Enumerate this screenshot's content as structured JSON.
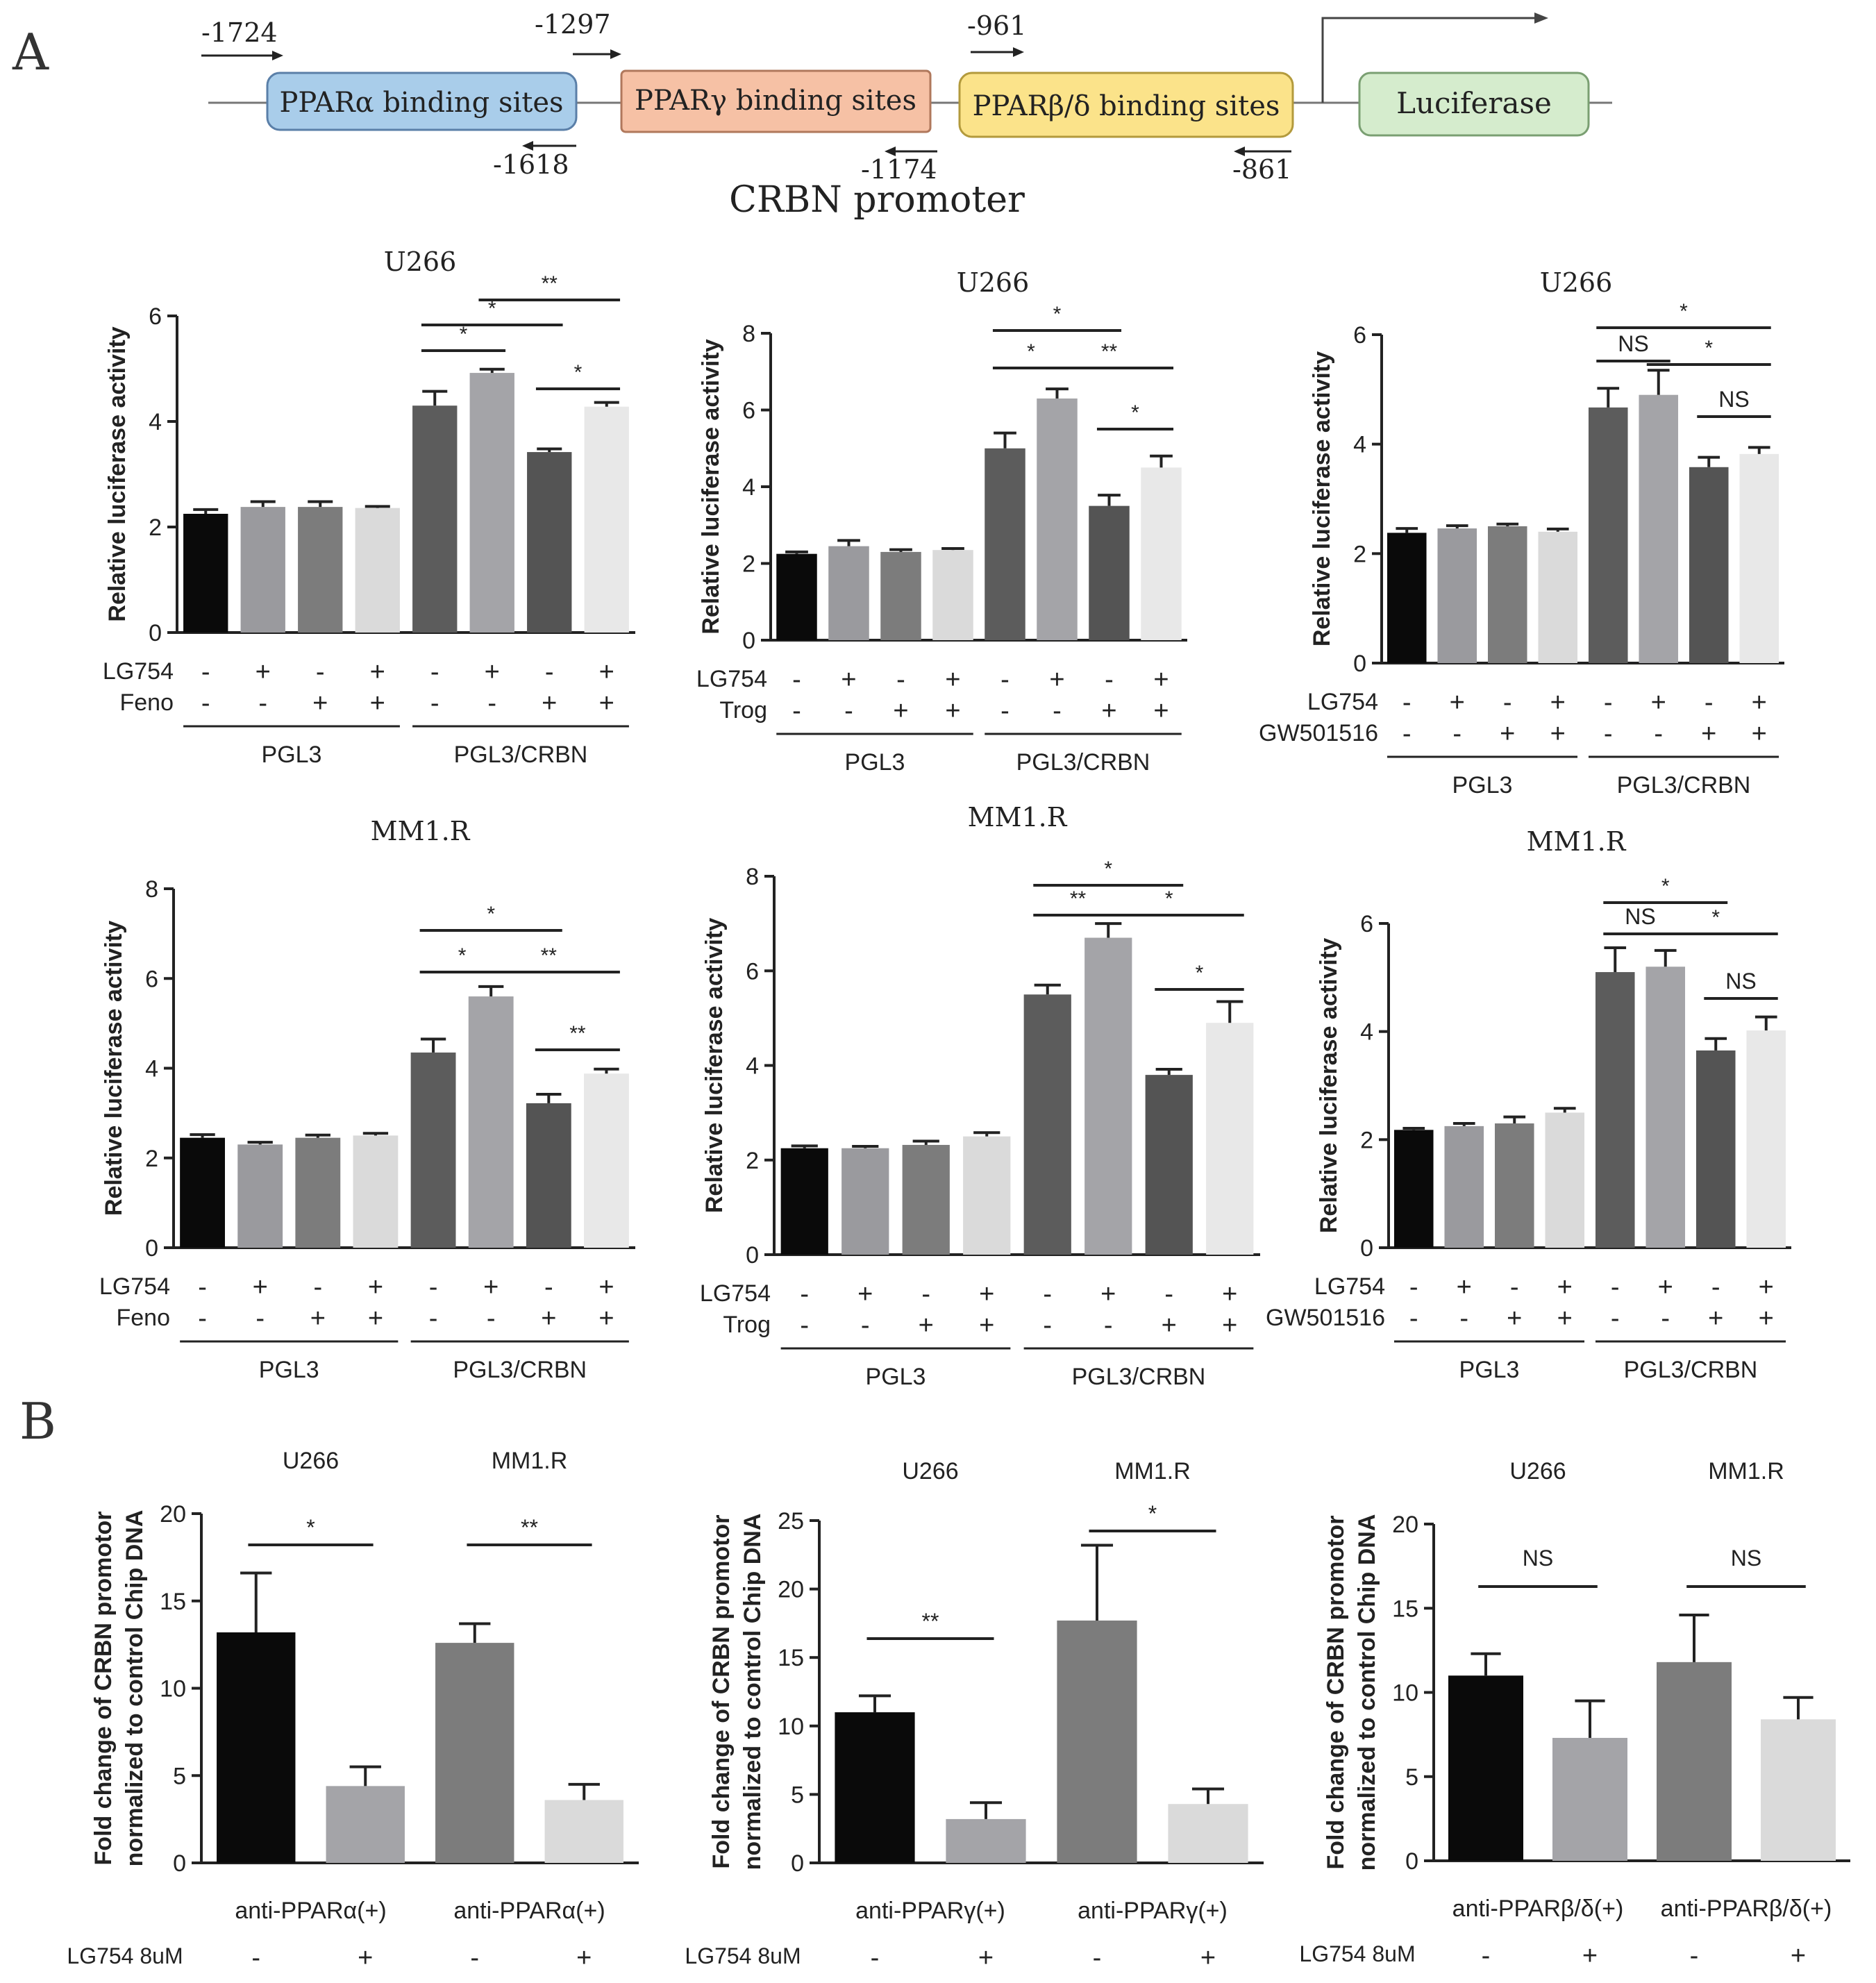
{
  "panel_labels": {
    "a": "A",
    "b": "B"
  },
  "promoter": {
    "title": "CRBN promoter",
    "boxes": [
      {
        "label": "PPARα binding sites",
        "fill": "#a9cdea",
        "stroke": "#5a7fa8"
      },
      {
        "label": "PPARγ binding sites",
        "fill": "#f6c1a5",
        "stroke": "#b0785c"
      },
      {
        "label": "PPARβ/δ binding sites",
        "fill": "#fbe38a",
        "stroke": "#b39a3c"
      },
      {
        "label": "Luciferase",
        "fill": "#d5eccd",
        "stroke": "#7a9f72"
      }
    ],
    "primers": [
      "-1724",
      "-1618",
      "-1297",
      "-1174",
      "-961",
      "-861"
    ]
  },
  "colors": {
    "black": "#0a0a0a",
    "grey_mid": "#9a9a9e",
    "grey_dark2": "#7c7c7c",
    "grey_light": "#dadada",
    "dark": "#5c5c5c",
    "mid_light": "#a4a4a8",
    "dark2": "#545454",
    "lightest": "#e8e8e8"
  },
  "chart_data": [
    {
      "id": "a1",
      "type": "bar",
      "title": "U266",
      "ylabel": "Relative luciferase activity",
      "ylim": [
        0,
        6
      ],
      "yticks": [
        "0",
        "2",
        "4",
        "6"
      ],
      "values": [
        2.25,
        2.38,
        2.38,
        2.36,
        4.3,
        4.92,
        3.42,
        4.28
      ],
      "errors": [
        0.08,
        0.1,
        0.1,
        0.03,
        0.27,
        0.07,
        0.06,
        0.08
      ],
      "row_labels": [
        "LG754",
        "Feno"
      ],
      "row1": [
        "-",
        "+",
        "-",
        "+",
        "-",
        "+",
        "-",
        "+"
      ],
      "row2": [
        "-",
        "-",
        "+",
        "+",
        "-",
        "-",
        "+",
        "+"
      ],
      "groups": [
        "PGL3",
        "PGL3/CRBN"
      ],
      "sig": [
        "*",
        "*",
        "**",
        "*"
      ]
    },
    {
      "id": "a2",
      "type": "bar",
      "title": "U266",
      "ylabel": "Relative luciferase activity",
      "ylim": [
        0,
        8
      ],
      "yticks": [
        "0",
        "2",
        "4",
        "6",
        "8"
      ],
      "values": [
        2.25,
        2.45,
        2.3,
        2.35,
        5.0,
        6.3,
        3.5,
        4.5
      ],
      "errors": [
        0.05,
        0.15,
        0.06,
        0.04,
        0.4,
        0.25,
        0.28,
        0.3
      ],
      "row_labels": [
        "LG754",
        "Trog"
      ],
      "row1": [
        "-",
        "+",
        "-",
        "+",
        "-",
        "+",
        "-",
        "+"
      ],
      "row2": [
        "-",
        "-",
        "+",
        "+",
        "-",
        "-",
        "+",
        "+"
      ],
      "groups": [
        "PGL3",
        "PGL3/CRBN"
      ],
      "sig": [
        "*",
        "*",
        "**",
        "*"
      ]
    },
    {
      "id": "a3",
      "type": "bar",
      "title": "U266",
      "ylabel": "Relative luciferase activity",
      "ylim": [
        0,
        6
      ],
      "yticks": [
        "0",
        "2",
        "4",
        "6"
      ],
      "values": [
        2.38,
        2.46,
        2.5,
        2.4,
        4.67,
        4.9,
        3.58,
        3.82
      ],
      "errors": [
        0.08,
        0.05,
        0.04,
        0.05,
        0.35,
        0.45,
        0.18,
        0.12
      ],
      "row_labels": [
        "LG754",
        "GW501516"
      ],
      "row1": [
        "-",
        "+",
        "-",
        "+",
        "-",
        "+",
        "-",
        "+"
      ],
      "row2": [
        "-",
        "-",
        "+",
        "+",
        "-",
        "-",
        "+",
        "+"
      ],
      "groups": [
        "PGL3",
        "PGL3/CRBN"
      ],
      "sig": [
        "NS",
        "*",
        "*",
        "NS"
      ]
    },
    {
      "id": "a4",
      "type": "bar",
      "title": "MM1.R",
      "ylabel": "Relative luciferase activity",
      "ylim": [
        0,
        8
      ],
      "yticks": [
        "0",
        "2",
        "4",
        "6",
        "8"
      ],
      "values": [
        2.45,
        2.3,
        2.45,
        2.5,
        4.35,
        5.6,
        3.22,
        3.88
      ],
      "errors": [
        0.07,
        0.05,
        0.06,
        0.05,
        0.3,
        0.22,
        0.2,
        0.1
      ],
      "row_labels": [
        "LG754",
        "Feno"
      ],
      "row1": [
        "-",
        "+",
        "-",
        "+",
        "-",
        "+",
        "-",
        "+"
      ],
      "row2": [
        "-",
        "-",
        "+",
        "+",
        "-",
        "-",
        "+",
        "+"
      ],
      "groups": [
        "PGL3",
        "PGL3/CRBN"
      ],
      "sig": [
        "*",
        "*",
        "**",
        "**"
      ]
    },
    {
      "id": "a5",
      "type": "bar",
      "title": "MM1.R",
      "ylabel": "Relative luciferase activity",
      "ylim": [
        0,
        8
      ],
      "yticks": [
        "0",
        "2",
        "4",
        "6",
        "8"
      ],
      "values": [
        2.25,
        2.25,
        2.32,
        2.5,
        5.5,
        6.7,
        3.8,
        4.9
      ],
      "errors": [
        0.05,
        0.04,
        0.08,
        0.08,
        0.2,
        0.3,
        0.12,
        0.45
      ],
      "row_labels": [
        "LG754",
        "Trog"
      ],
      "row1": [
        "-",
        "+",
        "-",
        "+",
        "-",
        "+",
        "-",
        "+"
      ],
      "row2": [
        "-",
        "-",
        "+",
        "+",
        "-",
        "-",
        "+",
        "+"
      ],
      "groups": [
        "PGL3",
        "PGL3/CRBN"
      ],
      "sig": [
        "**",
        "*",
        "*",
        "*"
      ]
    },
    {
      "id": "a6",
      "type": "bar",
      "title": "MM1.R",
      "ylabel": "Relative luciferase activity",
      "ylim": [
        0,
        6
      ],
      "yticks": [
        "0",
        "2",
        "4",
        "6"
      ],
      "values": [
        2.18,
        2.25,
        2.3,
        2.5,
        5.1,
        5.2,
        3.65,
        4.02
      ],
      "errors": [
        0.03,
        0.05,
        0.12,
        0.08,
        0.45,
        0.3,
        0.22,
        0.25
      ],
      "row_labels": [
        "LG754",
        "GW501516"
      ],
      "row1": [
        "-",
        "+",
        "-",
        "+",
        "-",
        "+",
        "-",
        "+"
      ],
      "row2": [
        "-",
        "-",
        "+",
        "+",
        "-",
        "-",
        "+",
        "+"
      ],
      "groups": [
        "PGL3",
        "PGL3/CRBN"
      ],
      "sig": [
        "NS",
        "*",
        "*",
        "NS"
      ]
    },
    {
      "id": "b1",
      "type": "bar",
      "ylabel_lines": [
        "Fold change of CRBN promotor",
        "normalized to control Chip DNA"
      ],
      "ylim": [
        0,
        20
      ],
      "yticks": [
        "0",
        "5",
        "10",
        "15",
        "20"
      ],
      "values": [
        13.2,
        4.4,
        12.6,
        3.6
      ],
      "errors": [
        3.4,
        1.1,
        1.1,
        0.9
      ],
      "cell_labels": [
        "U266",
        "MM1.R"
      ],
      "antibody": [
        "anti-PPARα(+)",
        "anti-PPARα(+)"
      ],
      "treat_label": "LG754 8uM",
      "treat": [
        "-",
        "+",
        "-",
        "+"
      ],
      "sig": [
        "*",
        "**"
      ]
    },
    {
      "id": "b2",
      "type": "bar",
      "ylabel_lines": [
        "Fold change of CRBN promotor",
        "normalized to control Chip DNA"
      ],
      "ylim": [
        0,
        25
      ],
      "yticks": [
        "0",
        "5",
        "10",
        "15",
        "20",
        "25"
      ],
      "values": [
        11.0,
        3.2,
        17.7,
        4.3
      ],
      "errors": [
        1.2,
        1.2,
        5.5,
        1.1
      ],
      "cell_labels": [
        "U266",
        "MM1.R"
      ],
      "antibody": [
        "anti-PPARγ(+)",
        "anti-PPARγ(+)"
      ],
      "treat_label": "LG754 8uM",
      "treat": [
        "-",
        "+",
        "-",
        "+"
      ],
      "sig": [
        "**",
        "*"
      ]
    },
    {
      "id": "b3",
      "type": "bar",
      "ylabel_lines": [
        "Fold change of CRBN promotor",
        "normalized to control Chip DNA"
      ],
      "ylim": [
        0,
        20
      ],
      "yticks": [
        "0",
        "5",
        "10",
        "15",
        "20"
      ],
      "values": [
        11.0,
        7.3,
        11.8,
        8.4
      ],
      "errors": [
        1.3,
        2.2,
        2.8,
        1.3
      ],
      "cell_labels": [
        "U266",
        "MM1.R"
      ],
      "antibody": [
        "anti-PPARβ/δ(+)",
        "anti-PPARβ/δ(+)"
      ],
      "treat_label": "LG754 8uM",
      "treat": [
        "-",
        "+",
        "-",
        "+"
      ],
      "sig": [
        "NS",
        "NS"
      ]
    }
  ]
}
